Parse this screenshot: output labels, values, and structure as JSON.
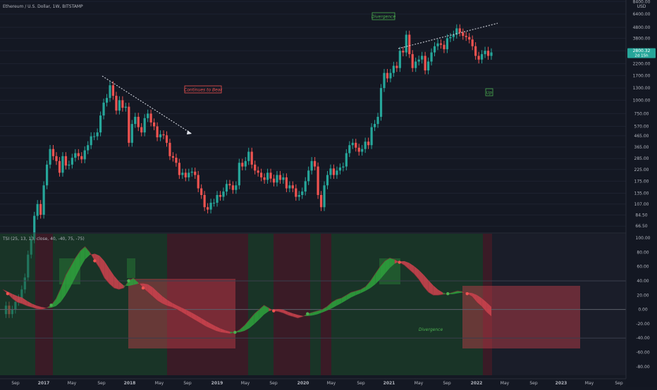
{
  "header": {
    "symbol": "Ethereum / U.S. Dollar, 1W, BITSTAMP",
    "currency": "USD",
    "last_price": "2800.32",
    "countdown": "2d 15h"
  },
  "indicator": {
    "label": "TSI (25, 13, 13, close, 40, -40, 75, -75)"
  },
  "annotations": {
    "divergence_top": "Divergence",
    "continues_to_bear": "Continues to Bear",
    "up": "Up",
    "divergence_bottom": "Divergence"
  },
  "colors": {
    "background": "#141823",
    "up_candle": "#26a69a",
    "down_candle": "#ef5350",
    "green_zone": "#1e4d2b",
    "red_zone": "#5a1f2a",
    "tsi_green": "#2e9d3c",
    "tsi_red": "#c8414c"
  },
  "chart_data": [
    {
      "type": "candlestick",
      "scale": "log",
      "ylim": [
        60,
        8400
      ],
      "y_ticks": [
        "8400.00",
        "6400.00",
        "4800.00",
        "3800.00",
        "2900.00",
        "2200.00",
        "1700.00",
        "1300.00",
        "1000.00",
        "750.00",
        "570.00",
        "465.00",
        "365.00",
        "285.00",
        "225.00",
        "175.00",
        "135.00",
        "107.00",
        "84.50",
        "66.50"
      ],
      "x_ticks": [
        "Sep",
        "2017",
        "May",
        "Sep",
        "2018",
        "May",
        "Sep",
        "2019",
        "May",
        "Sep",
        "2020",
        "May",
        "Sep",
        "2021",
        "May",
        "Sep",
        "2022",
        "May",
        "Sep",
        "2023",
        "May",
        "Sep"
      ],
      "series_close": [
        10,
        12,
        10,
        11,
        13,
        14,
        17,
        22,
        36,
        50,
        83,
        107,
        85,
        160,
        250,
        350,
        300,
        270,
        210,
        300,
        245,
        250,
        290,
        320,
        300,
        280,
        340,
        380,
        460,
        460,
        500,
        720,
        950,
        1050,
        1380,
        1100,
        800,
        1000,
        850,
        870,
        400,
        600,
        700,
        560,
        500,
        680,
        750,
        620,
        570,
        450,
        480,
        470,
        400,
        300,
        290,
        260,
        200,
        210,
        190,
        210,
        215,
        200,
        150,
        130,
        100,
        95,
        110,
        110,
        130,
        125,
        140,
        165,
        160,
        145,
        160,
        260,
        240,
        270,
        330,
        250,
        220,
        210,
        190,
        180,
        210,
        185,
        170,
        200,
        180,
        190,
        150,
        160,
        150,
        125,
        130,
        140,
        175,
        220,
        270,
        240,
        130,
        100,
        160,
        200,
        230,
        200,
        220,
        235,
        240,
        320,
        380,
        400,
        360,
        330,
        350,
        410,
        380,
        560,
        600,
        700,
        1300,
        1800,
        1600,
        1800,
        2100,
        2000,
        2900,
        2800,
        4100,
        2700,
        2000,
        2300,
        2400,
        2600,
        1900,
        2300,
        2800,
        3200,
        3400,
        3300,
        3000,
        3800,
        3900,
        4100,
        4700,
        4300,
        4000,
        3900,
        3700,
        3200,
        2600,
        2400,
        2700,
        2900,
        2600,
        2800
      ],
      "trendlines": [
        "falling resistance 2018",
        "rising resistance 2021"
      ]
    },
    {
      "type": "line",
      "name": "TSI",
      "ylim": [
        -90,
        100
      ],
      "y_ticks": [
        "100.00",
        "80.00",
        "60.00",
        "40.00",
        "20.00",
        "0.00",
        "-20.00",
        "-40.00",
        "-60.00",
        "-80.00"
      ],
      "levels": [
        40,
        -40
      ],
      "tsi": [
        28,
        22,
        15,
        10,
        8,
        5,
        3,
        1,
        0,
        2,
        6,
        15,
        30,
        48,
        60,
        72,
        82,
        88,
        80,
        68,
        58,
        44,
        36,
        30,
        28,
        30,
        40,
        44,
        38,
        30,
        24,
        18,
        12,
        8,
        5,
        3,
        0,
        -4,
        -8,
        -12,
        -16,
        -20,
        -24,
        -27,
        -30,
        -32,
        -33,
        -34,
        -32,
        -28,
        -22,
        -14,
        -6,
        0,
        6,
        2,
        -2,
        -3,
        -5,
        -8,
        -10,
        -12,
        -10,
        -6,
        -4,
        -2,
        0,
        4,
        10,
        14,
        16,
        20,
        24,
        26,
        28,
        32,
        40,
        50,
        60,
        68,
        72,
        70,
        66,
        62,
        56,
        50,
        42,
        32,
        24,
        20,
        20,
        21,
        22,
        24,
        26,
        25,
        22,
        18,
        10,
        4,
        -4,
        -10
      ]
    }
  ]
}
